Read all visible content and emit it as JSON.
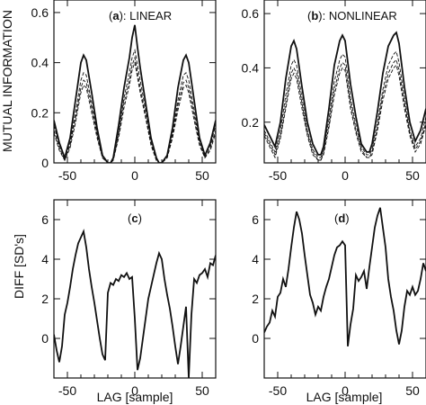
{
  "chart_data": [
    {
      "panel_label_letter": "a",
      "panel_label_text": ": LINEAR",
      "type": "line",
      "xlim": [
        -60,
        60
      ],
      "ylim": [
        0,
        0.65
      ],
      "xticks": [
        -50,
        0,
        50
      ],
      "xtick_labels": [
        "-50",
        "0",
        "50"
      ],
      "yticks": [
        0,
        0.2,
        0.4,
        0.6
      ],
      "ytick_labels": [
        "0",
        "0.2",
        "0.4",
        "0.6"
      ],
      "ylabel": "MUTUAL INFORMATION",
      "xlabel": "",
      "grid": false,
      "series": [
        {
          "style": "solid",
          "x": [
            -60,
            -56,
            -52,
            -48,
            -44,
            -40,
            -38,
            -36,
            -32,
            -28,
            -24,
            -20,
            -18,
            -16,
            -12,
            -8,
            -4,
            -2,
            0,
            2,
            4,
            8,
            12,
            16,
            18,
            20,
            24,
            28,
            32,
            36,
            38,
            40,
            44,
            48,
            52,
            56,
            60
          ],
          "y": [
            0.17,
            0.08,
            0.02,
            0.1,
            0.25,
            0.4,
            0.43,
            0.41,
            0.28,
            0.14,
            0.03,
            0.0,
            0.0,
            0.02,
            0.15,
            0.3,
            0.42,
            0.5,
            0.55,
            0.46,
            0.38,
            0.24,
            0.1,
            0.02,
            0.0,
            0.0,
            0.03,
            0.14,
            0.3,
            0.41,
            0.43,
            0.4,
            0.25,
            0.1,
            0.03,
            0.08,
            0.17
          ]
        },
        {
          "style": "dashed",
          "x": [
            -60,
            -56,
            -52,
            -48,
            -44,
            -40,
            -38,
            -36,
            -32,
            -28,
            -24,
            -20,
            -18,
            -16,
            -12,
            -8,
            -4,
            -2,
            0,
            2,
            4,
            8,
            12,
            16,
            18,
            20,
            24,
            28,
            32,
            36,
            38,
            40,
            44,
            48,
            52,
            56,
            60
          ],
          "y": [
            0.15,
            0.07,
            0.02,
            0.08,
            0.2,
            0.33,
            0.36,
            0.35,
            0.24,
            0.12,
            0.03,
            0.0,
            0.0,
            0.02,
            0.12,
            0.26,
            0.36,
            0.42,
            0.45,
            0.39,
            0.33,
            0.21,
            0.09,
            0.02,
            0.0,
            0.0,
            0.03,
            0.12,
            0.25,
            0.35,
            0.36,
            0.33,
            0.21,
            0.09,
            0.03,
            0.07,
            0.15
          ]
        },
        {
          "style": "dashed",
          "x": [
            -60,
            -56,
            -52,
            -48,
            -44,
            -40,
            -38,
            -36,
            -32,
            -28,
            -24,
            -20,
            -18,
            -16,
            -12,
            -8,
            -4,
            -2,
            0,
            2,
            4,
            8,
            12,
            16,
            18,
            20,
            24,
            28,
            32,
            36,
            38,
            40,
            44,
            48,
            52,
            56,
            60
          ],
          "y": [
            0.13,
            0.06,
            0.01,
            0.07,
            0.18,
            0.3,
            0.33,
            0.32,
            0.22,
            0.11,
            0.02,
            0.0,
            0.0,
            0.01,
            0.11,
            0.24,
            0.33,
            0.39,
            0.42,
            0.36,
            0.3,
            0.19,
            0.08,
            0.01,
            0.0,
            0.0,
            0.02,
            0.11,
            0.23,
            0.32,
            0.33,
            0.3,
            0.19,
            0.08,
            0.02,
            0.06,
            0.13
          ]
        },
        {
          "style": "dashed",
          "x": [
            -60,
            -56,
            -52,
            -48,
            -44,
            -40,
            -38,
            -36,
            -32,
            -28,
            -24,
            -20,
            -18,
            -16,
            -12,
            -8,
            -4,
            -2,
            0,
            2,
            4,
            8,
            12,
            16,
            18,
            20,
            24,
            28,
            32,
            36,
            38,
            40,
            44,
            48,
            52,
            56,
            60
          ],
          "y": [
            0.12,
            0.05,
            0.01,
            0.06,
            0.16,
            0.28,
            0.31,
            0.3,
            0.2,
            0.1,
            0.02,
            0.0,
            0.0,
            0.01,
            0.1,
            0.22,
            0.31,
            0.37,
            0.4,
            0.34,
            0.28,
            0.18,
            0.07,
            0.01,
            0.0,
            0.0,
            0.02,
            0.1,
            0.21,
            0.3,
            0.31,
            0.28,
            0.17,
            0.07,
            0.02,
            0.05,
            0.12
          ]
        }
      ]
    },
    {
      "panel_label_letter": "b",
      "panel_label_text": ": NONLINEAR",
      "type": "line",
      "xlim": [
        -60,
        60
      ],
      "ylim": [
        0.05,
        0.65
      ],
      "xticks": [
        -50,
        0,
        50
      ],
      "xtick_labels": [
        "-50",
        "0",
        "50"
      ],
      "yticks": [
        0.2,
        0.4,
        0.6
      ],
      "ytick_labels": [
        "0.2",
        "0.4",
        "0.6"
      ],
      "ylabel": "",
      "xlabel": "",
      "grid": false,
      "series": [
        {
          "style": "solid",
          "x": [
            -60,
            -56,
            -52,
            -48,
            -44,
            -40,
            -38,
            -36,
            -32,
            -28,
            -24,
            -20,
            -18,
            -16,
            -12,
            -8,
            -4,
            -2,
            0,
            2,
            4,
            8,
            12,
            16,
            18,
            20,
            24,
            28,
            32,
            36,
            38,
            40,
            44,
            48,
            52,
            56,
            60
          ],
          "y": [
            0.19,
            0.15,
            0.11,
            0.2,
            0.36,
            0.48,
            0.5,
            0.47,
            0.33,
            0.2,
            0.12,
            0.08,
            0.08,
            0.11,
            0.25,
            0.41,
            0.5,
            0.52,
            0.5,
            0.42,
            0.34,
            0.22,
            0.12,
            0.09,
            0.09,
            0.12,
            0.24,
            0.38,
            0.48,
            0.52,
            0.53,
            0.49,
            0.33,
            0.2,
            0.13,
            0.17,
            0.25
          ]
        },
        {
          "style": "dashed",
          "x": [
            -60,
            -56,
            -52,
            -48,
            -44,
            -40,
            -38,
            -36,
            -32,
            -28,
            -24,
            -20,
            -18,
            -16,
            -12,
            -8,
            -4,
            -2,
            0,
            2,
            4,
            8,
            12,
            16,
            18,
            20,
            24,
            28,
            32,
            36,
            38,
            40,
            44,
            48,
            52,
            56,
            60
          ],
          "y": [
            0.17,
            0.13,
            0.09,
            0.17,
            0.3,
            0.41,
            0.43,
            0.41,
            0.29,
            0.17,
            0.1,
            0.07,
            0.07,
            0.1,
            0.21,
            0.35,
            0.43,
            0.45,
            0.44,
            0.37,
            0.29,
            0.19,
            0.11,
            0.08,
            0.08,
            0.1,
            0.2,
            0.32,
            0.41,
            0.45,
            0.46,
            0.42,
            0.29,
            0.17,
            0.11,
            0.14,
            0.22
          ]
        },
        {
          "style": "dashed",
          "x": [
            -60,
            -56,
            -52,
            -48,
            -44,
            -40,
            -38,
            -36,
            -32,
            -28,
            -24,
            -20,
            -18,
            -16,
            -12,
            -8,
            -4,
            -2,
            0,
            2,
            4,
            8,
            12,
            16,
            18,
            20,
            24,
            28,
            32,
            36,
            38,
            40,
            44,
            48,
            52,
            56,
            60
          ],
          "y": [
            0.16,
            0.12,
            0.08,
            0.15,
            0.27,
            0.38,
            0.4,
            0.38,
            0.27,
            0.16,
            0.09,
            0.06,
            0.06,
            0.09,
            0.19,
            0.32,
            0.4,
            0.42,
            0.41,
            0.34,
            0.27,
            0.17,
            0.1,
            0.07,
            0.07,
            0.09,
            0.18,
            0.3,
            0.38,
            0.42,
            0.43,
            0.39,
            0.27,
            0.16,
            0.1,
            0.13,
            0.2
          ]
        },
        {
          "style": "dashed",
          "x": [
            -60,
            -56,
            -52,
            -48,
            -44,
            -40,
            -38,
            -36,
            -32,
            -28,
            -24,
            -20,
            -18,
            -16,
            -12,
            -8,
            -4,
            -2,
            0,
            2,
            4,
            8,
            12,
            16,
            18,
            20,
            24,
            28,
            32,
            36,
            38,
            40,
            44,
            48,
            52,
            56,
            60
          ],
          "y": [
            0.15,
            0.11,
            0.07,
            0.14,
            0.25,
            0.36,
            0.38,
            0.36,
            0.25,
            0.15,
            0.08,
            0.06,
            0.06,
            0.08,
            0.18,
            0.3,
            0.38,
            0.4,
            0.39,
            0.32,
            0.25,
            0.16,
            0.09,
            0.07,
            0.07,
            0.08,
            0.17,
            0.28,
            0.36,
            0.4,
            0.41,
            0.37,
            0.25,
            0.15,
            0.09,
            0.12,
            0.19
          ]
        }
      ]
    },
    {
      "panel_label_letter": "c",
      "panel_label_text": "",
      "type": "line",
      "xlim": [
        -60,
        60
      ],
      "ylim": [
        -2,
        7
      ],
      "xticks": [
        -50,
        0,
        50
      ],
      "xtick_labels": [
        "-50",
        "0",
        "50"
      ],
      "yticks": [
        0,
        2,
        4,
        6
      ],
      "ytick_labels": [
        "0",
        "2",
        "4",
        "6"
      ],
      "ylabel": "DIFF [SD's]",
      "xlabel": "LAG [sample]",
      "grid": false,
      "series": [
        {
          "style": "solid",
          "x": [
            -60,
            -58,
            -56,
            -54,
            -52,
            -50,
            -48,
            -46,
            -44,
            -42,
            -40,
            -38,
            -36,
            -34,
            -32,
            -30,
            -28,
            -26,
            -24,
            -22,
            -20,
            -18,
            -16,
            -14,
            -12,
            -10,
            -8,
            -6,
            -4,
            -2,
            0,
            2,
            4,
            6,
            8,
            10,
            12,
            14,
            16,
            18,
            20,
            22,
            24,
            26,
            28,
            30,
            32,
            34,
            36,
            38,
            40,
            42,
            44,
            46,
            48,
            50,
            52,
            54,
            56,
            58,
            60
          ],
          "y": [
            0.2,
            -0.6,
            -1.2,
            -0.4,
            1.2,
            1.8,
            2.6,
            3.5,
            4.2,
            4.8,
            5.1,
            5.4,
            4.6,
            3.5,
            2.6,
            1.8,
            0.9,
            0.0,
            -0.8,
            -1.1,
            2.3,
            2.8,
            2.7,
            3.0,
            2.9,
            3.2,
            3.1,
            3.3,
            3.0,
            3.1,
            1.0,
            -1.6,
            -1.0,
            0.0,
            1.0,
            2.0,
            2.6,
            3.2,
            3.8,
            4.3,
            4.0,
            3.0,
            2.2,
            1.5,
            0.6,
            -0.4,
            -1.3,
            -0.4,
            0.6,
            1.6,
            -2.0,
            1.2,
            3.0,
            2.8,
            3.2,
            3.3,
            3.5,
            3.1,
            3.8,
            3.7,
            4.2
          ]
        }
      ]
    },
    {
      "panel_label_letter": "d",
      "panel_label_text": "",
      "type": "line",
      "xlim": [
        -60,
        60
      ],
      "ylim": [
        -2,
        7
      ],
      "xticks": [
        -50,
        0,
        50
      ],
      "xtick_labels": [
        "-50",
        "0",
        "50"
      ],
      "yticks": [
        0,
        2,
        4,
        6
      ],
      "ytick_labels": [
        "0",
        "2",
        "4",
        "6"
      ],
      "ylabel": "",
      "xlabel": "LAG [sample]",
      "grid": false,
      "series": [
        {
          "style": "solid",
          "x": [
            -60,
            -58,
            -56,
            -54,
            -52,
            -50,
            -48,
            -46,
            -44,
            -42,
            -40,
            -38,
            -36,
            -34,
            -32,
            -30,
            -28,
            -26,
            -24,
            -22,
            -20,
            -18,
            -16,
            -14,
            -12,
            -10,
            -8,
            -6,
            -4,
            -2,
            0,
            2,
            4,
            6,
            8,
            10,
            12,
            14,
            16,
            18,
            20,
            22,
            24,
            26,
            28,
            30,
            32,
            34,
            36,
            38,
            40,
            42,
            44,
            46,
            48,
            50,
            52,
            54,
            56,
            58,
            60
          ],
          "y": [
            0.3,
            0.6,
            0.8,
            1.4,
            1.1,
            2.1,
            2.3,
            3.0,
            2.6,
            3.5,
            4.6,
            5.6,
            6.4,
            6.0,
            5.3,
            4.2,
            3.2,
            2.2,
            1.8,
            1.2,
            1.6,
            1.4,
            2.1,
            2.6,
            3.0,
            3.6,
            4.2,
            4.6,
            4.7,
            4.9,
            4.7,
            -0.4,
            0.7,
            1.5,
            3.2,
            2.9,
            3.1,
            3.4,
            2.5,
            3.6,
            4.6,
            5.6,
            6.2,
            6.6,
            5.6,
            4.6,
            3.0,
            2.1,
            1.4,
            0.4,
            -0.3,
            0.4,
            1.6,
            2.4,
            2.2,
            2.6,
            2.2,
            2.4,
            3.0,
            3.8,
            3.4
          ]
        }
      ]
    }
  ]
}
